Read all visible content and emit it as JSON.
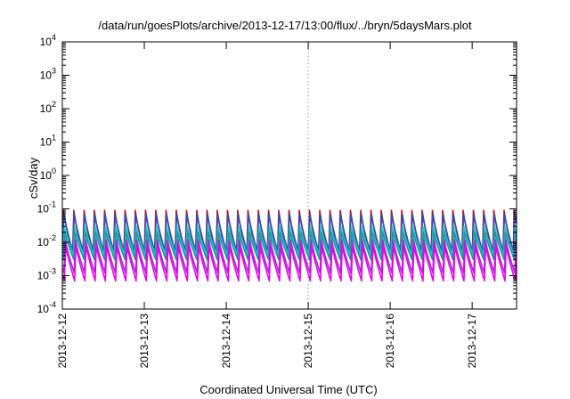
{
  "chart_data": {
    "type": "line",
    "title": "/data/run/goesPlots/archive/2013-12-17/13:00/flux/../bryn/5daysMars.plot",
    "xlabel": "Coordinated Universal Time (UTC)",
    "ylabel": "cSv/day",
    "yscale": "log",
    "ylim": [
      0.0001,
      10000
    ],
    "yticks": [
      {
        "exp": "-4",
        "value": 0.0001
      },
      {
        "exp": "-3",
        "value": 0.001
      },
      {
        "exp": "-2",
        "value": 0.01
      },
      {
        "exp": "-1",
        "value": 0.1
      },
      {
        "exp": "0",
        "value": 1
      },
      {
        "exp": "1",
        "value": 10
      },
      {
        "exp": "2",
        "value": 100
      },
      {
        "exp": "3",
        "value": 1000
      },
      {
        "exp": "4",
        "value": 10000
      }
    ],
    "ytick_base": "10",
    "xlim": [
      "2013-12-12",
      "2013-12-17T13:00"
    ],
    "xticks": [
      "2013-12-12",
      "2013-12-13",
      "2013-12-14",
      "2013-12-15",
      "2013-12-16",
      "2013-12-17"
    ],
    "grid": "vertical dotted at 2013-12-15",
    "legend": "none",
    "cycles_per_day": 8,
    "series": [
      {
        "color": "#cc1111",
        "peak": 0.09,
        "trough": 0.004
      },
      {
        "color": "#2a52be",
        "peak": 0.07,
        "trough": 0.005
      },
      {
        "color": "#1fc9c9",
        "peak": 0.03,
        "trough": 0.004
      },
      {
        "color": "#1a9c9c",
        "peak": 0.02,
        "trough": 0.003
      },
      {
        "color": "#9933cc",
        "peak": 0.012,
        "trough": 0.0012
      },
      {
        "color": "#ee00ee",
        "peak": 0.008,
        "trough": 0.0007
      }
    ]
  }
}
